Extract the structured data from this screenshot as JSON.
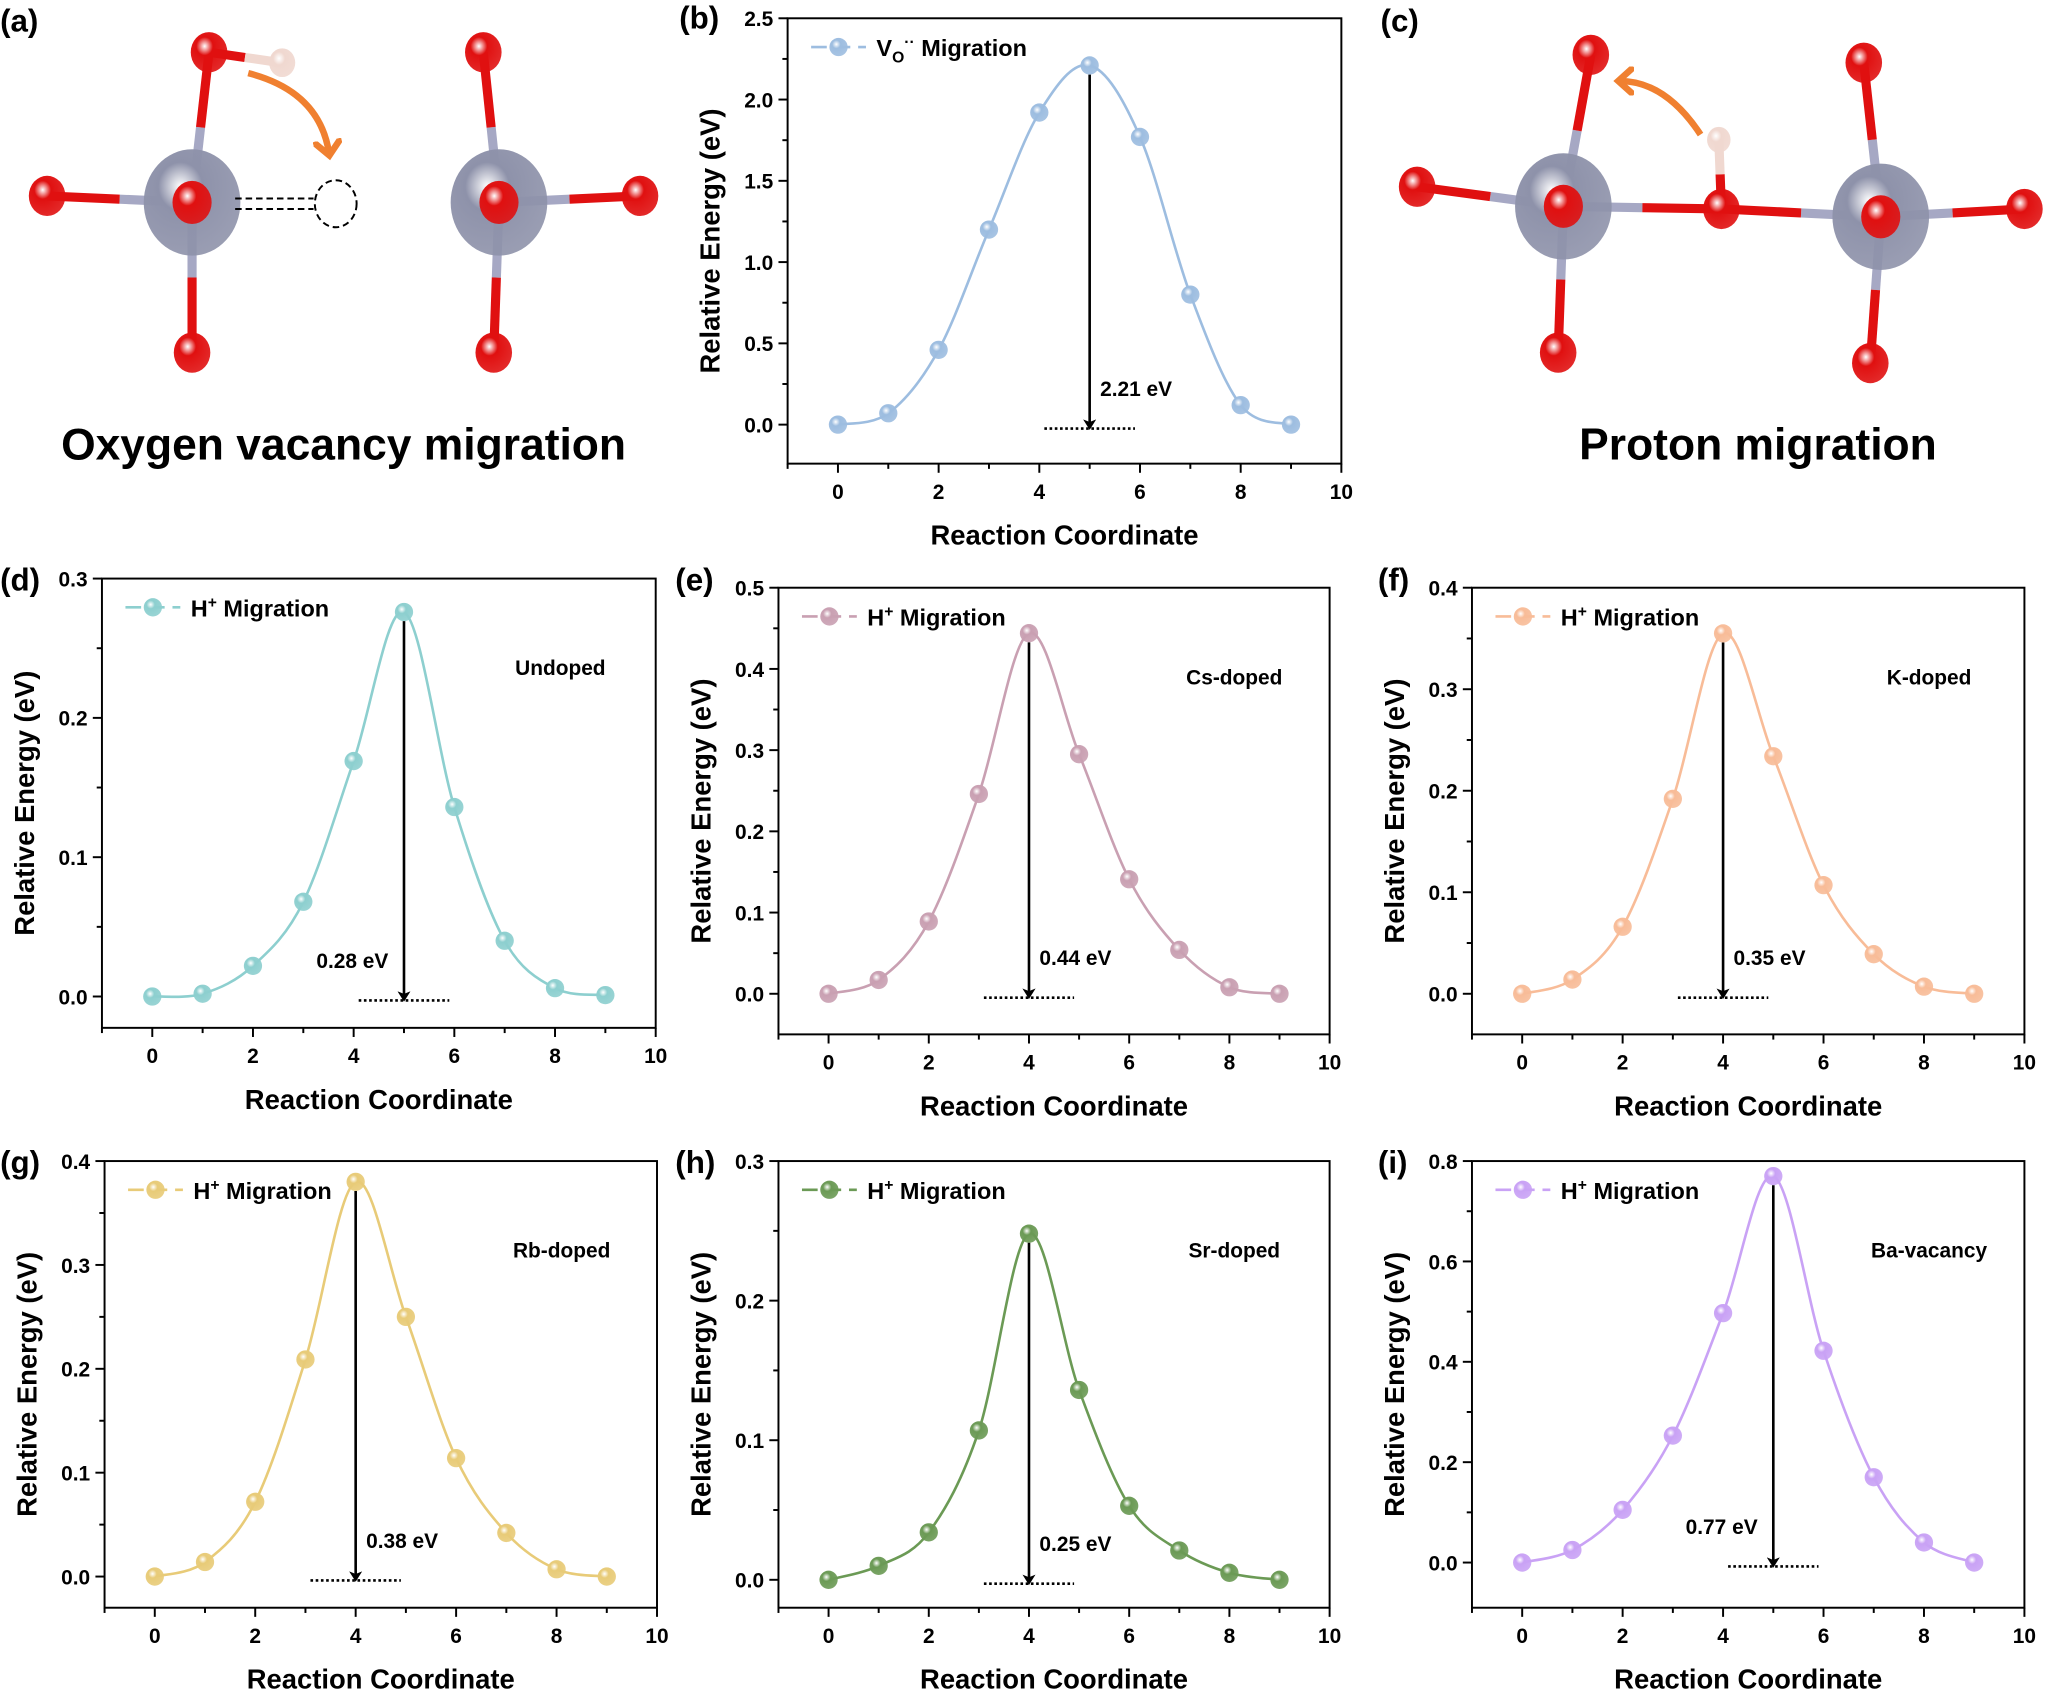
{
  "panels": {
    "a": {
      "letter": "(a)",
      "title": "Oxygen vacancy migration"
    },
    "c": {
      "letter": "(c)",
      "title": "Proton migration"
    }
  },
  "colors": {
    "oxygen": "#e01010",
    "metal": "#8e92aa",
    "bond_metal": "#a6a8c4",
    "hydrogen": "#f0d8d0",
    "arrow": "#f08030"
  },
  "chart_data": [
    {
      "id": "b",
      "letter": "(b)",
      "type": "line",
      "legend": {
        "main": "V",
        "sub": "O",
        "sup": "··",
        "rest": " Migration"
      },
      "color": "#9dbde0",
      "label": "",
      "xlabel": "Reaction Coordinate",
      "ylabel": "Relative Energy (eV)",
      "xlim": [
        -1,
        10
      ],
      "ylim": [
        -0.24,
        2.5
      ],
      "xticks": [
        0,
        2,
        4,
        6,
        8,
        10
      ],
      "yticks": [
        0.0,
        0.5,
        1.0,
        1.5,
        2.0,
        2.5
      ],
      "x": [
        0,
        1,
        2,
        3,
        4,
        5,
        6,
        7,
        8,
        9
      ],
      "y": [
        0,
        0.07,
        0.46,
        1.2,
        1.92,
        2.21,
        1.77,
        0.8,
        0.12,
        0
      ],
      "barrier": "2.21 eV",
      "barrier_x": 5,
      "barrier_side": "right"
    },
    {
      "id": "d",
      "letter": "(d)",
      "type": "line",
      "legend": {
        "main": "H",
        "sub": "",
        "sup": "+",
        "rest": " Migration"
      },
      "color": "#8dcfcf",
      "label": "Undoped",
      "xlabel": "Reaction Coordinate",
      "ylabel": "Relative Energy (eV)",
      "xlim": [
        -1,
        10
      ],
      "ylim": [
        -0.0225,
        0.3
      ],
      "xticks": [
        0,
        2,
        4,
        6,
        8,
        10
      ],
      "yticks": [
        0.0,
        0.1,
        0.2,
        0.3
      ],
      "x": [
        0,
        1,
        2,
        3,
        4,
        5,
        6,
        7,
        8,
        9
      ],
      "y": [
        0,
        0.002,
        0.022,
        0.068,
        0.169,
        0.276,
        0.136,
        0.04,
        0.006,
        0.001
      ],
      "barrier": "0.28 eV",
      "barrier_x": 5,
      "barrier_side": "left"
    },
    {
      "id": "e",
      "letter": "(e)",
      "type": "line",
      "legend": {
        "main": "H",
        "sub": "",
        "sup": "+",
        "rest": " Migration"
      },
      "color": "#c9a0b2",
      "label": "Cs-doped",
      "xlabel": "Reaction Coordinate",
      "ylabel": "Relative Energy (eV)",
      "xlim": [
        -1,
        10
      ],
      "ylim": [
        -0.05,
        0.5
      ],
      "xticks": [
        0,
        2,
        4,
        6,
        8,
        10
      ],
      "yticks": [
        0.0,
        0.1,
        0.2,
        0.3,
        0.4,
        0.5
      ],
      "x": [
        0,
        1,
        2,
        3,
        4,
        5,
        6,
        7,
        8,
        9
      ],
      "y": [
        0,
        0.017,
        0.089,
        0.246,
        0.444,
        0.295,
        0.141,
        0.054,
        0.008,
        0
      ],
      "barrier": "0.44 eV",
      "barrier_x": 4,
      "barrier_side": "right"
    },
    {
      "id": "f",
      "letter": "(f)",
      "type": "line",
      "legend": {
        "main": "H",
        "sub": "",
        "sup": "+",
        "rest": " Migration"
      },
      "color": "#f8bc98",
      "label": "K-doped",
      "xlabel": "Reaction Coordinate",
      "ylabel": "Relative Energy (eV)",
      "xlim": [
        -1,
        10
      ],
      "ylim": [
        -0.04,
        0.4
      ],
      "xticks": [
        0,
        2,
        4,
        6,
        8,
        10
      ],
      "yticks": [
        0.0,
        0.1,
        0.2,
        0.3,
        0.4
      ],
      "x": [
        0,
        1,
        2,
        3,
        4,
        5,
        6,
        7,
        8,
        9
      ],
      "y": [
        0,
        0.014,
        0.066,
        0.192,
        0.355,
        0.234,
        0.107,
        0.039,
        0.007,
        0
      ],
      "barrier": "0.35 eV",
      "barrier_x": 4,
      "barrier_side": "right"
    },
    {
      "id": "g",
      "letter": "(g)",
      "type": "line",
      "legend": {
        "main": "H",
        "sub": "",
        "sup": "+",
        "rest": " Migration"
      },
      "color": "#e8cb78",
      "label": "Rb-doped",
      "xlabel": "Reaction Coordinate",
      "ylabel": "Relative Energy (eV)",
      "xlim": [
        -1,
        10
      ],
      "ylim": [
        -0.03,
        0.4
      ],
      "xticks": [
        0,
        2,
        4,
        6,
        8,
        10
      ],
      "yticks": [
        0.0,
        0.1,
        0.2,
        0.3,
        0.4
      ],
      "x": [
        0,
        1,
        2,
        3,
        4,
        5,
        6,
        7,
        8,
        9
      ],
      "y": [
        0,
        0.014,
        0.072,
        0.209,
        0.38,
        0.25,
        0.114,
        0.042,
        0.007,
        0
      ],
      "barrier": "0.38 eV",
      "barrier_x": 4,
      "barrier_side": "right"
    },
    {
      "id": "h",
      "letter": "(h)",
      "type": "line",
      "legend": {
        "main": "H",
        "sub": "",
        "sup": "+",
        "rest": " Migration"
      },
      "color": "#6b9a55",
      "label": "Sr-doped",
      "xlabel": "Reaction Coordinate",
      "ylabel": "Relative Energy (eV)",
      "xlim": [
        -1,
        10
      ],
      "ylim": [
        -0.02,
        0.3
      ],
      "xticks": [
        0,
        2,
        4,
        6,
        8,
        10
      ],
      "yticks": [
        0.0,
        0.1,
        0.2,
        0.3
      ],
      "x": [
        0,
        1,
        2,
        3,
        4,
        5,
        6,
        7,
        8,
        9
      ],
      "y": [
        0,
        0.01,
        0.034,
        0.107,
        0.248,
        0.136,
        0.053,
        0.021,
        0.005,
        0
      ],
      "barrier": "0.25 eV",
      "barrier_x": 4,
      "barrier_side": "right"
    },
    {
      "id": "i",
      "letter": "(i)",
      "type": "line",
      "legend": {
        "main": "H",
        "sub": "",
        "sup": "+",
        "rest": " Migration"
      },
      "color": "#c9a2f5",
      "label": "Ba-vacancy",
      "xlabel": "Reaction Coordinate",
      "ylabel": "Relative Energy (eV)",
      "xlim": [
        -1,
        10
      ],
      "ylim": [
        -0.09,
        0.8
      ],
      "xticks": [
        0,
        2,
        4,
        6,
        8,
        10
      ],
      "yticks": [
        0.0,
        0.2,
        0.4,
        0.6,
        0.8
      ],
      "x": [
        0,
        1,
        2,
        3,
        4,
        5,
        6,
        7,
        8,
        9
      ],
      "y": [
        0,
        0.025,
        0.105,
        0.253,
        0.497,
        0.77,
        0.422,
        0.17,
        0.04,
        0
      ],
      "barrier": "0.77 eV",
      "barrier_x": 5,
      "barrier_side": "left"
    }
  ]
}
